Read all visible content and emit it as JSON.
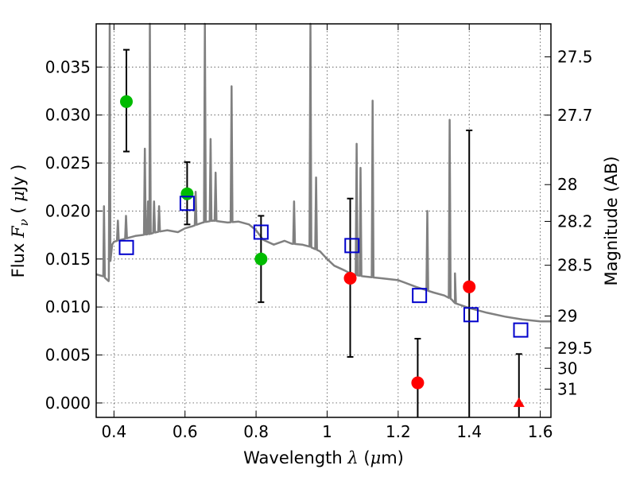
{
  "chart_data": {
    "type": "scatter",
    "xlabel_parts": [
      "Wavelength  ",
      "λ",
      " (",
      "μ",
      "m)"
    ],
    "ylabel_parts": [
      "Flux  ",
      "F",
      "ν",
      "  ( ",
      "μ",
      "Jy )"
    ],
    "y2label": "Magnitude (AB)",
    "xlim": [
      0.35,
      1.63
    ],
    "ylim": [
      -0.0015,
      0.0395
    ],
    "x_ticks": [
      0.4,
      0.6,
      0.8,
      1.0,
      1.2,
      1.4,
      1.6
    ],
    "x_tick_labels": [
      "0.4",
      "0.6",
      "0.8",
      "1",
      "1.2",
      "1.4",
      "1.6"
    ],
    "y_ticks": [
      0.0,
      0.005,
      0.01,
      0.015,
      0.02,
      0.025,
      0.03,
      0.035
    ],
    "y_tick_labels": [
      "0.000",
      "0.005",
      "0.010",
      "0.015",
      "0.020",
      "0.025",
      "0.030",
      "0.035"
    ],
    "y2_ticks": [
      {
        "label": "27.5",
        "flux": 0.03606
      },
      {
        "label": "27.7",
        "flux": 0.02999
      },
      {
        "label": "28",
        "flux": 0.02275
      },
      {
        "label": "28.2",
        "flux": 0.01892
      },
      {
        "label": "28.5",
        "flux": 0.01435
      },
      {
        "label": "29",
        "flux": 0.00906
      },
      {
        "label": "29.5",
        "flux": 0.00572
      },
      {
        "label": "30",
        "flux": 0.00361
      },
      {
        "label": "31",
        "flux": 0.00144
      }
    ],
    "grid": true,
    "colors": {
      "model": "#808080",
      "model_photometry": "#0000cc",
      "detected_green": "#00bb00",
      "detected_red": "#ff0000",
      "error_bar": "#000000"
    },
    "series": [
      {
        "marker": "circle",
        "color": "#00bb00",
        "points": [
          {
            "x": 0.435,
            "y": 0.0314,
            "yerr_low": 0.0262,
            "yerr_high": 0.0368
          },
          {
            "x": 0.606,
            "y": 0.0218,
            "yerr_low": 0.0186,
            "yerr_high": 0.0251
          },
          {
            "x": 0.814,
            "y": 0.015,
            "yerr_low": 0.0105,
            "yerr_high": 0.0195
          }
        ]
      },
      {
        "marker": "circle",
        "color": "#ff0000",
        "points": [
          {
            "x": 1.065,
            "y": 0.013,
            "yerr_low": 0.0048,
            "yerr_high": 0.0213
          },
          {
            "x": 1.255,
            "y": 0.0021,
            "yerr_low": -0.0015,
            "yerr_high": 0.0067
          },
          {
            "x": 1.4,
            "y": 0.0121,
            "yerr_low": -0.0015,
            "yerr_high": 0.0284
          }
        ]
      },
      {
        "marker": "triangle",
        "color": "#ff0000",
        "points": [
          {
            "x": 1.54,
            "y": 0.0,
            "yerr_low": -0.0015,
            "yerr_high": 0.0051
          }
        ]
      },
      {
        "marker": "open-square",
        "color": "#0000cc",
        "points": [
          {
            "x": 0.435,
            "y": 0.0162
          },
          {
            "x": 0.606,
            "y": 0.0208
          },
          {
            "x": 0.814,
            "y": 0.0178
          },
          {
            "x": 1.07,
            "y": 0.0164
          },
          {
            "x": 1.26,
            "y": 0.0112
          },
          {
            "x": 1.405,
            "y": 0.0092
          },
          {
            "x": 1.545,
            "y": 0.0076
          }
        ]
      }
    ],
    "model_spectrum": {
      "x": [
        0.35,
        0.37,
        0.385,
        0.39,
        0.395,
        0.4,
        0.42,
        0.44,
        0.46,
        0.48,
        0.5,
        0.52,
        0.55,
        0.58,
        0.6,
        0.62,
        0.65,
        0.68,
        0.7,
        0.72,
        0.75,
        0.78,
        0.8,
        0.82,
        0.85,
        0.88,
        0.9,
        0.93,
        0.95,
        0.98,
        1.0,
        1.02,
        1.05,
        1.07,
        1.1,
        1.15,
        1.2,
        1.25,
        1.3,
        1.33,
        1.35,
        1.36,
        1.4,
        1.45,
        1.5,
        1.55,
        1.6,
        1.63
      ],
      "y": [
        0.0134,
        0.0132,
        0.0127,
        0.0148,
        0.0165,
        0.0168,
        0.017,
        0.0172,
        0.0174,
        0.0175,
        0.0176,
        0.0178,
        0.018,
        0.0178,
        0.0182,
        0.0184,
        0.0188,
        0.019,
        0.0189,
        0.0188,
        0.0189,
        0.0186,
        0.018,
        0.017,
        0.0165,
        0.0169,
        0.0166,
        0.0165,
        0.0163,
        0.0158,
        0.015,
        0.0143,
        0.0138,
        0.0134,
        0.0132,
        0.013,
        0.0128,
        0.0121,
        0.0115,
        0.0112,
        0.0108,
        0.0104,
        0.0099,
        0.0094,
        0.009,
        0.0087,
        0.0085,
        0.0085
      ]
    },
    "model_lines": [
      {
        "x": 0.372,
        "top": 0.0205
      },
      {
        "x": 0.388,
        "top": 0.0395
      },
      {
        "x": 0.411,
        "top": 0.019
      },
      {
        "x": 0.434,
        "top": 0.0195
      },
      {
        "x": 0.487,
        "top": 0.0265
      },
      {
        "x": 0.496,
        "top": 0.021
      },
      {
        "x": 0.501,
        "top": 0.0395
      },
      {
        "x": 0.513,
        "top": 0.021
      },
      {
        "x": 0.527,
        "top": 0.0205
      },
      {
        "x": 0.63,
        "top": 0.022
      },
      {
        "x": 0.656,
        "top": 0.0395
      },
      {
        "x": 0.672,
        "top": 0.0275
      },
      {
        "x": 0.686,
        "top": 0.024
      },
      {
        "x": 0.731,
        "top": 0.033
      },
      {
        "x": 0.907,
        "top": 0.021
      },
      {
        "x": 0.953,
        "top": 0.0395
      },
      {
        "x": 0.969,
        "top": 0.0235
      },
      {
        "x": 1.083,
        "top": 0.027
      },
      {
        "x": 1.094,
        "top": 0.0245
      },
      {
        "x": 1.128,
        "top": 0.0315
      },
      {
        "x": 1.282,
        "top": 0.02
      },
      {
        "x": 1.345,
        "top": 0.0295
      },
      {
        "x": 1.36,
        "top": 0.0135
      }
    ]
  }
}
